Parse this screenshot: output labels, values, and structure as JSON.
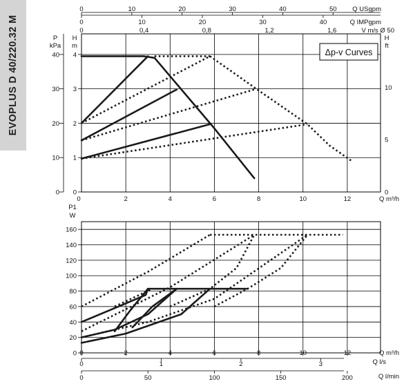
{
  "side_label": "EVOPLUS D 40/220.32 M",
  "chart_data": [
    {
      "type": "line",
      "title": "Δp-v Curves",
      "top_axes": [
        {
          "label": "Q USgpm",
          "ticks": [
            0,
            10,
            20,
            30,
            40,
            50
          ],
          "per_m3h": 4.403
        },
        {
          "label": "Q IMPgpm",
          "ticks": [
            0,
            10,
            20,
            30,
            40
          ],
          "per_m3h": 3.666
        },
        {
          "label": "V m/s Ø 50",
          "ticks": [
            "0",
            "0,4",
            "0,8",
            "1,2",
            "1,6"
          ],
          "values": [
            0,
            0.4,
            0.8,
            1.2,
            1.6
          ],
          "per_m3h": 0.1415
        }
      ],
      "xlabel": "Q m³/h",
      "x_ticks": [
        0,
        2,
        4,
        6,
        8,
        10,
        12
      ],
      "xlim": [
        0,
        13.5
      ],
      "left_axes": [
        {
          "label_top": "P",
          "label_bottom": "kPa",
          "ticks": [
            0,
            10,
            20,
            30,
            40
          ]
        },
        {
          "label_top": "H",
          "label_bottom": "m",
          "ticks": [
            0,
            1,
            2,
            3,
            4
          ]
        }
      ],
      "right_axis": {
        "label_top": "H",
        "label_bottom": "ft",
        "ticks": [
          0,
          5,
          10
        ]
      },
      "ylim": [
        0,
        4.6
      ],
      "series": [
        {
          "style": "solid",
          "points": [
            [
              0,
              2.0
            ],
            [
              3.0,
              3.95
            ]
          ]
        },
        {
          "style": "solid",
          "points": [
            [
              0,
              1.5
            ],
            [
              4.3,
              2.98
            ]
          ]
        },
        {
          "style": "solid",
          "points": [
            [
              0,
              0.97
            ],
            [
              5.8,
              1.97
            ]
          ]
        },
        {
          "style": "solid",
          "points": [
            [
              0,
              3.95
            ],
            [
              2.8,
              3.95
            ],
            [
              3.3,
              3.9
            ],
            [
              6.0,
              1.85
            ],
            [
              7.8,
              0.4
            ]
          ]
        },
        {
          "style": "dotted",
          "points": [
            [
              3.3,
              3.95
            ],
            [
              5.8,
              3.95
            ]
          ]
        },
        {
          "style": "dotted",
          "points": [
            [
              0,
              2.0
            ],
            [
              5.8,
              3.95
            ]
          ]
        },
        {
          "style": "dotted",
          "points": [
            [
              0,
              1.5
            ],
            [
              7.8,
              2.98
            ]
          ]
        },
        {
          "style": "dotted",
          "points": [
            [
              0,
              0.97
            ],
            [
              10.2,
              1.97
            ]
          ]
        },
        {
          "style": "dotted",
          "points": [
            [
              5.8,
              3.95
            ],
            [
              8.0,
              2.95
            ],
            [
              10.2,
              1.97
            ],
            [
              11.2,
              1.35
            ],
            [
              12.2,
              0.9
            ]
          ]
        }
      ]
    },
    {
      "type": "line",
      "ylabel_top": "P1",
      "ylabel_bottom": "W",
      "y_ticks": [
        0,
        20,
        40,
        60,
        80,
        100,
        120,
        140,
        160
      ],
      "ylim": [
        0,
        170
      ],
      "xlabel": "Q m³/h",
      "x_ticks": [
        0,
        2,
        4,
        6,
        8,
        10,
        12
      ],
      "xlim": [
        0,
        13.5
      ],
      "bottom_axes": [
        {
          "label": "Q l/s",
          "ticks": [
            0,
            1,
            2,
            3
          ],
          "per_m3h": 0.2778
        },
        {
          "label": "Q l/min",
          "ticks": [
            0,
            50,
            100,
            150,
            200
          ],
          "per_m3h": 16.667
        }
      ],
      "series": [
        {
          "style": "solid",
          "points": [
            [
              0,
              40
            ],
            [
              1.5,
              58
            ],
            [
              2.9,
              75
            ],
            [
              3.0,
              83
            ]
          ]
        },
        {
          "style": "solid",
          "points": [
            [
              0,
              20
            ],
            [
              1.5,
              30
            ],
            [
              3.0,
              50
            ],
            [
              4.3,
              83
            ]
          ]
        },
        {
          "style": "solid",
          "points": [
            [
              0,
              13
            ],
            [
              2.0,
              25
            ],
            [
              4.5,
              50
            ],
            [
              5.8,
              83
            ]
          ]
        },
        {
          "style": "solid",
          "points": [
            [
              3.0,
              83
            ],
            [
              7.5,
              83
            ]
          ]
        },
        {
          "style": "solid",
          "points": [
            [
              1.5,
              28
            ],
            [
              2.2,
              55
            ],
            [
              3.0,
              83
            ]
          ]
        },
        {
          "style": "solid",
          "points": [
            [
              2.3,
              33
            ],
            [
              3.2,
              60
            ],
            [
              4.3,
              83
            ]
          ]
        },
        {
          "style": "dotted",
          "points": [
            [
              0,
              60
            ],
            [
              3.0,
              105
            ],
            [
              5.8,
              153
            ]
          ]
        },
        {
          "style": "dotted",
          "points": [
            [
              0,
              28
            ],
            [
              4.0,
              85
            ],
            [
              7.8,
              153
            ]
          ]
        },
        {
          "style": "dotted",
          "points": [
            [
              0,
              20
            ],
            [
              3.0,
              40
            ],
            [
              6.0,
              70
            ],
            [
              10.2,
              153
            ]
          ]
        },
        {
          "style": "dotted",
          "points": [
            [
              5.8,
              153
            ],
            [
              11.8,
              153
            ]
          ]
        },
        {
          "style": "dotted",
          "points": [
            [
              1.5,
              60
            ],
            [
              3.2,
              83
            ]
          ]
        },
        {
          "style": "dotted",
          "points": [
            [
              4.0,
              60
            ],
            [
              5.8,
              83
            ],
            [
              7.0,
              110
            ],
            [
              7.8,
              153
            ]
          ]
        },
        {
          "style": "dotted",
          "points": [
            [
              6.0,
              60
            ],
            [
              7.5,
              83
            ],
            [
              9.0,
              110
            ],
            [
              10.2,
              153
            ]
          ]
        }
      ]
    }
  ]
}
